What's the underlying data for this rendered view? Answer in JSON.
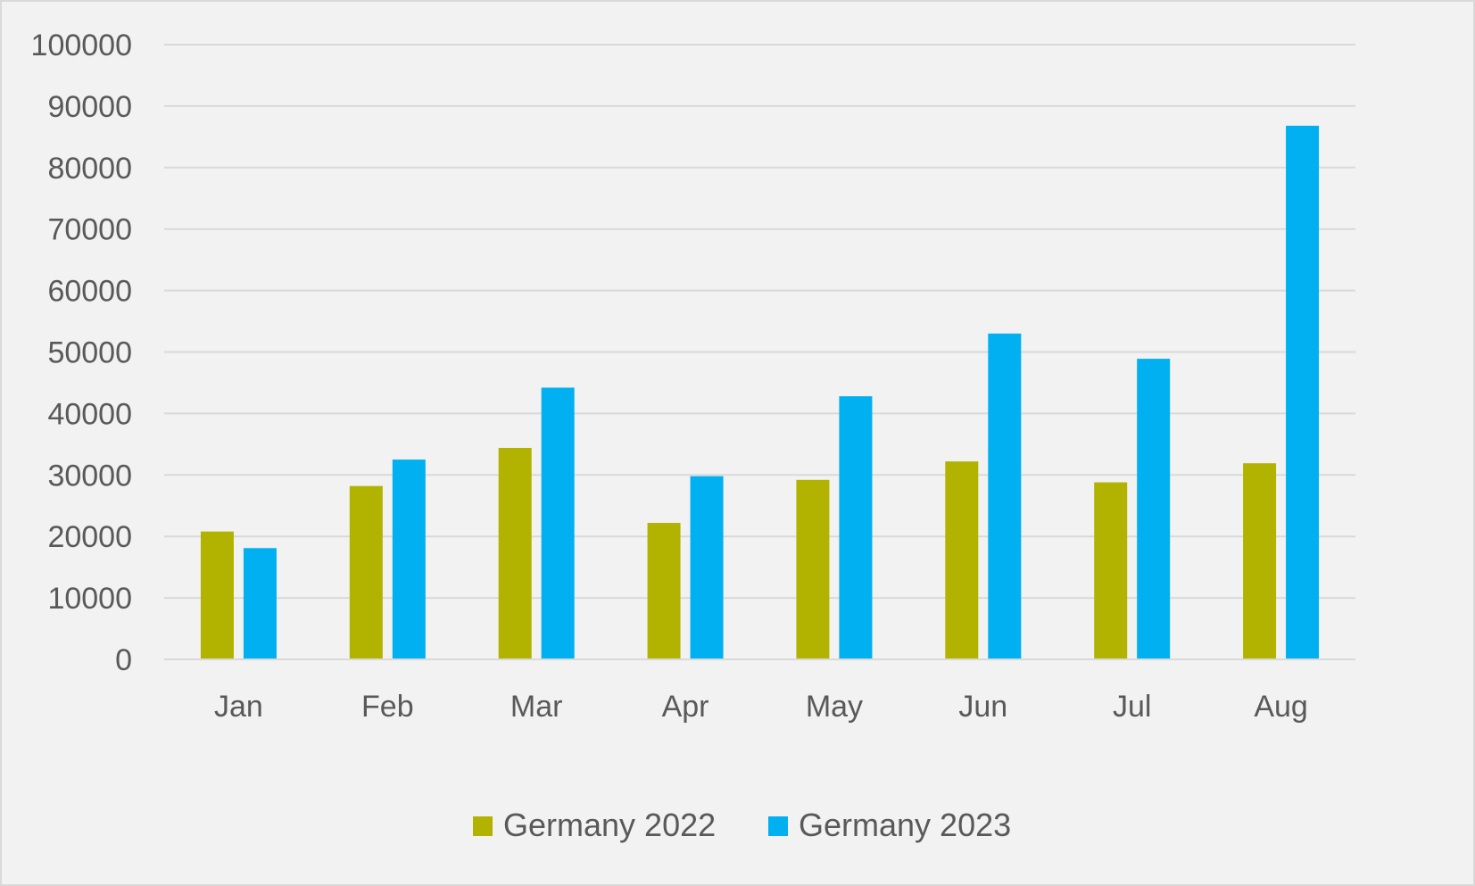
{
  "chart_data": {
    "type": "bar",
    "categories": [
      "Jan",
      "Feb",
      "Mar",
      "Apr",
      "May",
      "Jun",
      "Jul",
      "Aug"
    ],
    "series": [
      {
        "name": "Germany 2022",
        "color": "#b2b300",
        "values": [
          20800,
          28200,
          34400,
          22200,
          29200,
          32200,
          28800,
          31900
        ]
      },
      {
        "name": "Germany 2023",
        "color": "#00b0f0",
        "values": [
          18100,
          32500,
          44200,
          29800,
          42800,
          53000,
          48900,
          86800
        ]
      }
    ],
    "ylim": [
      0,
      100000
    ],
    "yticks": [
      "0",
      "10000",
      "20000",
      "30000",
      "40000",
      "50000",
      "60000",
      "70000",
      "80000",
      "90000",
      "100000"
    ],
    "grid": true,
    "legend_position": "bottom",
    "background": "#f2f2f2",
    "grid_color": "#d9d9d9",
    "text_color": "#595959"
  }
}
